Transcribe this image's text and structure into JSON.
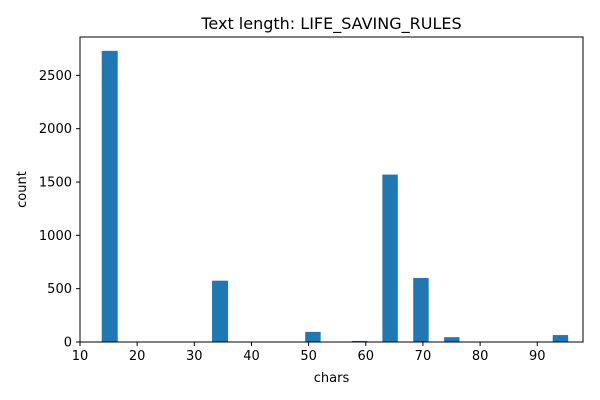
{
  "chart_data": {
    "type": "bar",
    "title": "Text length: LIFE_SAVING_RULES",
    "xlabel": "chars",
    "ylabel": "count",
    "xlim": [
      10,
      98
    ],
    "ylim": [
      0,
      2860
    ],
    "x_ticks": [
      10,
      20,
      30,
      40,
      50,
      60,
      70,
      80,
      90
    ],
    "y_ticks": [
      0,
      500,
      1000,
      1500,
      2000,
      2500
    ],
    "bar_color": "#1f77b4",
    "grid": false,
    "legend": "none",
    "bins": [
      {
        "start": 13.8,
        "end": 16.6,
        "value": 2730
      },
      {
        "start": 33.1,
        "end": 35.9,
        "value": 575
      },
      {
        "start": 49.4,
        "end": 52.1,
        "value": 95
      },
      {
        "start": 57.6,
        "end": 60.3,
        "value": 10
      },
      {
        "start": 62.9,
        "end": 65.6,
        "value": 1570
      },
      {
        "start": 68.3,
        "end": 71.0,
        "value": 600
      },
      {
        "start": 73.7,
        "end": 76.4,
        "value": 45
      },
      {
        "start": 92.7,
        "end": 95.4,
        "value": 65
      }
    ]
  }
}
